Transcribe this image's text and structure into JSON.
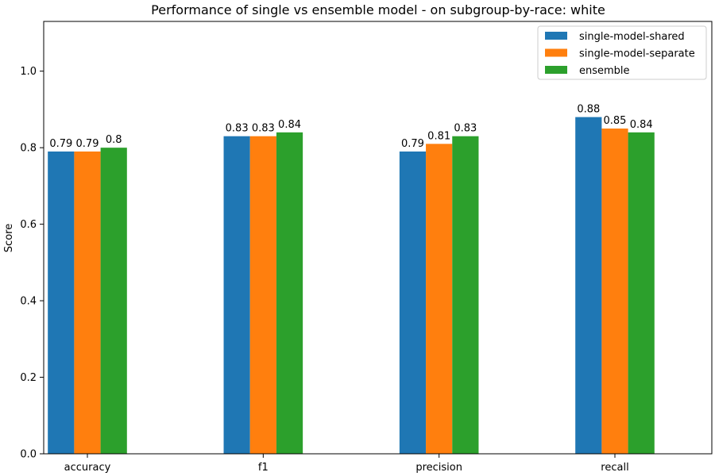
{
  "chart_data": {
    "type": "bar",
    "title": "Performance of single vs ensemble model - on subgroup-by-race: white",
    "xlabel": "",
    "ylabel": "Score",
    "categories": [
      "accuracy",
      "f1",
      "precision",
      "recall"
    ],
    "series": [
      {
        "name": "single-model-shared",
        "color": "#1f77b4",
        "values": [
          0.79,
          0.83,
          0.79,
          0.88
        ]
      },
      {
        "name": "single-model-separate",
        "color": "#ff7f0e",
        "values": [
          0.79,
          0.83,
          0.81,
          0.85
        ]
      },
      {
        "name": "ensemble",
        "color": "#2ca02c",
        "values": [
          0.8,
          0.84,
          0.83,
          0.84
        ]
      }
    ],
    "ylim": [
      0,
      1.13
    ],
    "yticks": [
      0.0,
      0.2,
      0.4,
      0.6,
      0.8,
      1.0
    ],
    "grid": false,
    "legend": "top-right"
  }
}
